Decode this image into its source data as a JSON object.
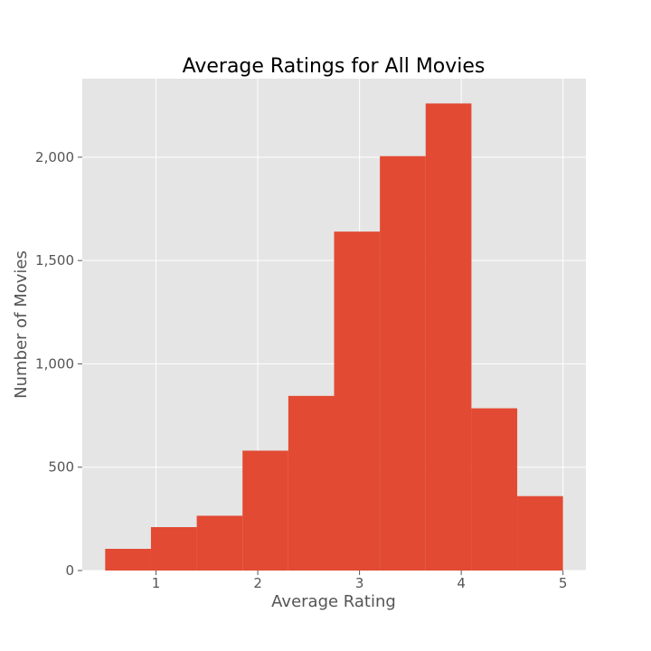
{
  "colors": {
    "bar": "#E24A33",
    "plot_background": "#E5E5E5",
    "grid": "#FFFFFF",
    "tick": "#555555"
  },
  "chart_data": {
    "type": "bar",
    "title": "Average Ratings for All Movies",
    "xlabel": "Average Rating",
    "ylabel": "Number of Movies",
    "xlim": [
      0.275,
      5.225
    ],
    "ylim": [
      0,
      2380
    ],
    "grid": true,
    "x_ticks": [
      1,
      2,
      3,
      4,
      5
    ],
    "x_tick_labels": [
      "1",
      "2",
      "3",
      "4",
      "5"
    ],
    "y_ticks": [
      0,
      500,
      1000,
      1500,
      2000
    ],
    "y_tick_labels": [
      "0",
      "500",
      "1,000",
      "1,500",
      "2,000"
    ],
    "bins": [
      {
        "x0": 0.5,
        "x1": 0.95,
        "value": 105
      },
      {
        "x0": 0.95,
        "x1": 1.4,
        "value": 210
      },
      {
        "x0": 1.4,
        "x1": 1.85,
        "value": 265
      },
      {
        "x0": 1.85,
        "x1": 2.3,
        "value": 580
      },
      {
        "x0": 2.3,
        "x1": 2.75,
        "value": 845
      },
      {
        "x0": 2.75,
        "x1": 3.2,
        "value": 1640
      },
      {
        "x0": 3.2,
        "x1": 3.65,
        "value": 2005
      },
      {
        "x0": 3.65,
        "x1": 4.1,
        "value": 2260
      },
      {
        "x0": 4.1,
        "x1": 4.55,
        "value": 785
      },
      {
        "x0": 4.55,
        "x1": 5.0,
        "value": 360
      }
    ]
  }
}
